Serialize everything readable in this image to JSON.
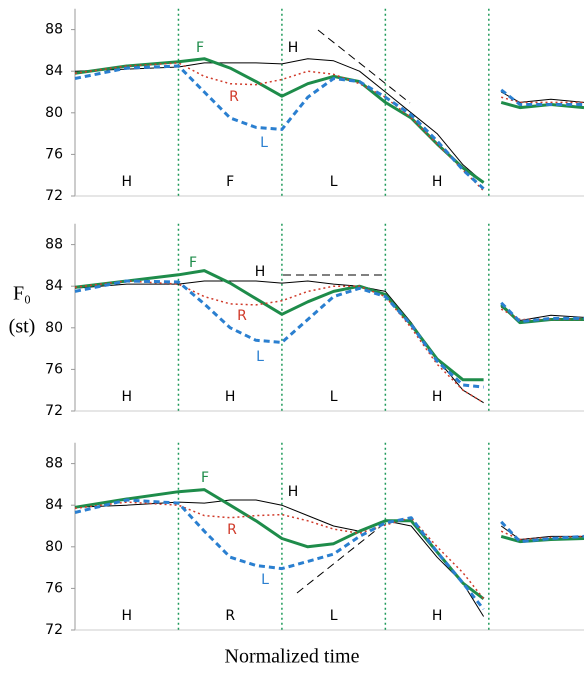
{
  "chart_data": [
    {
      "type": "line",
      "x": [
        0,
        0.5,
        1,
        1.25,
        1.5,
        1.75,
        2,
        2.25,
        2.5,
        2.75,
        3,
        3.25,
        3.5,
        3.75,
        3.95,
        4.05,
        4.12,
        4.3,
        4.6,
        4.92
      ],
      "xlim": [
        0,
        4.92
      ],
      "ylim": [
        72,
        90
      ],
      "yticks": [
        72,
        76,
        80,
        84,
        88
      ],
      "boundaries": [
        1,
        2,
        3,
        4
      ],
      "segments": [
        "H",
        "F",
        "L",
        "H"
      ],
      "series": [
        {
          "name": "H",
          "color": "#000000",
          "values": [
            84,
            84.2,
            84.4,
            84.8,
            84.8,
            84.8,
            84.7,
            85.2,
            85,
            84,
            82,
            80,
            78,
            75,
            73.3,
            null,
            82,
            81,
            81.3,
            81
          ]
        },
        {
          "name": "F",
          "color": "#1e8c4a",
          "values": [
            83.8,
            84.5,
            84.9,
            85.2,
            84.3,
            83,
            81.6,
            82.8,
            83.5,
            83,
            81,
            79.5,
            77,
            74.7,
            73.3,
            null,
            81,
            80.5,
            80.8,
            80.5
          ]
        },
        {
          "name": "R",
          "color": "#d03a2a",
          "values": [
            83.8,
            84.5,
            84.8,
            83.5,
            82.8,
            82.7,
            83.2,
            84,
            83.7,
            82.8,
            81.5,
            79.5,
            77,
            74.5,
            72.5,
            null,
            81.5,
            81,
            81,
            81
          ]
        },
        {
          "name": "L",
          "color": "#2a7fd0",
          "values": [
            83.3,
            84.3,
            84.5,
            82,
            79.5,
            78.6,
            78.4,
            81.5,
            83.3,
            83,
            81.5,
            79.8,
            77.3,
            74.5,
            72.7,
            null,
            82.2,
            80.8,
            80.8,
            80.8
          ]
        }
      ]
    },
    {
      "type": "line",
      "x": [
        0,
        0.5,
        1,
        1.25,
        1.5,
        1.75,
        2,
        2.25,
        2.5,
        2.75,
        3,
        3.25,
        3.5,
        3.75,
        3.95,
        4.05,
        4.12,
        4.3,
        4.6,
        4.92
      ],
      "xlim": [
        0,
        4.92
      ],
      "ylim": [
        72,
        90
      ],
      "yticks": [
        72,
        76,
        80,
        84,
        88
      ],
      "boundaries": [
        1,
        2,
        3,
        4
      ],
      "segments": [
        "H",
        "H",
        "L",
        "H"
      ],
      "ylabel": [
        "F₀",
        "(st)"
      ],
      "series": [
        {
          "name": "H",
          "color": "#000000",
          "values": [
            83.8,
            84.2,
            84.2,
            84.5,
            84.5,
            84.5,
            84.3,
            84.5,
            84.2,
            84,
            83.5,
            80.5,
            77,
            74,
            72.8,
            null,
            82,
            80.7,
            81.2,
            81
          ]
        },
        {
          "name": "F",
          "color": "#1e8c4a",
          "values": [
            83.9,
            84.5,
            85.1,
            85.5,
            84.3,
            82.8,
            81.3,
            82.5,
            83.5,
            84,
            83.2,
            80.3,
            77,
            75,
            75,
            null,
            82.2,
            80.5,
            80.8,
            80.8
          ]
        },
        {
          "name": "R",
          "color": "#d03a2a",
          "values": [
            83.9,
            84.5,
            84.2,
            83,
            82.3,
            82.2,
            82.6,
            83.5,
            84,
            84,
            83,
            80,
            76.5,
            74,
            72.8,
            null,
            81.8,
            80.8,
            80.8,
            80.8
          ]
        },
        {
          "name": "L",
          "color": "#2a7fd0",
          "values": [
            83.5,
            84.5,
            84.4,
            82.3,
            80,
            78.8,
            78.6,
            80.8,
            83,
            83.8,
            83,
            80.3,
            76.8,
            74.5,
            74.3,
            null,
            82.4,
            80.6,
            80.9,
            80.9
          ]
        }
      ]
    },
    {
      "type": "line",
      "x": [
        0,
        0.5,
        1,
        1.25,
        1.5,
        1.75,
        2,
        2.25,
        2.5,
        2.75,
        3,
        3.25,
        3.5,
        3.75,
        3.95,
        4.05,
        4.12,
        4.3,
        4.6,
        4.92
      ],
      "xlim": [
        0,
        4.92
      ],
      "ylim": [
        72,
        90
      ],
      "yticks": [
        72,
        76,
        80,
        84,
        88
      ],
      "boundaries": [
        1,
        2,
        3,
        4
      ],
      "segments": [
        "H",
        "R",
        "L",
        "H"
      ],
      "xlabel": "Normalized time",
      "series": [
        {
          "name": "H",
          "color": "#000000",
          "values": [
            83.8,
            84,
            84.3,
            84.2,
            84.5,
            84.5,
            84,
            83,
            82,
            81.5,
            82.5,
            82,
            79,
            76.5,
            73.3,
            null,
            82,
            80.7,
            81,
            81
          ]
        },
        {
          "name": "F",
          "color": "#1e8c4a",
          "values": [
            83.8,
            84.6,
            85.3,
            85.5,
            84,
            82.5,
            80.8,
            80,
            80.3,
            81.5,
            82.5,
            82.5,
            79.5,
            76.5,
            75,
            null,
            81,
            80.5,
            80.7,
            80.8
          ]
        },
        {
          "name": "R",
          "color": "#d03a2a",
          "values": [
            83.7,
            84.3,
            84,
            83,
            82.8,
            83,
            83.1,
            82.5,
            81.7,
            81.3,
            82.1,
            82.8,
            80,
            77.5,
            75,
            null,
            81.5,
            80.7,
            80.9,
            81
          ]
        },
        {
          "name": "L",
          "color": "#2a7fd0",
          "values": [
            83.3,
            84.5,
            84.2,
            81.5,
            79,
            78.2,
            77.9,
            78.6,
            79.3,
            81,
            82.3,
            82.8,
            79.5,
            76.5,
            74,
            null,
            82.4,
            80.5,
            80.8,
            81
          ]
        }
      ]
    }
  ]
}
